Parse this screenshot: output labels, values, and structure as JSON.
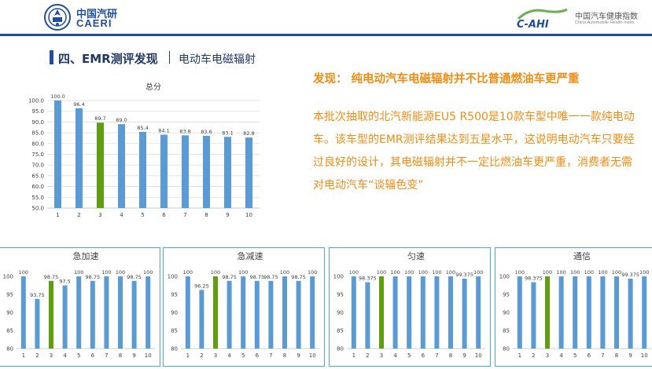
{
  "header": {
    "left_logo_cn": "中国汽研",
    "left_logo_en": "CAERI",
    "right_logo_mark": "C-AHI",
    "right_logo_cn": "中国汽车健康指数",
    "right_logo_en": "China Automobile Health Index"
  },
  "section": {
    "title": "四、EMR测评发现",
    "subtitle": "电动车电磁辐射"
  },
  "finding": {
    "title": "发现：  纯电动汽车电磁辐射并不比普通燃油车更严重",
    "body": "本批次抽取的北汽新能源EU5 R500是10款车型中唯一一款纯电动车。该车型的EMR测评结果达到五星水平，这说明电动汽车只要经过良好的设计，其电磁辐射并不一定比燃油车更严重，消费者无需对电动汽车“谈辐色变”"
  },
  "colors": {
    "bar": "#5b9bd5",
    "highlight": "#5e9e0f",
    "accent": "#f28c13",
    "brand": "#1f4e9a"
  },
  "chart_data": [
    {
      "type": "bar",
      "title": "总分",
      "categories": [
        "1",
        "2",
        "3",
        "4",
        "5",
        "6",
        "7",
        "8",
        "9",
        "10"
      ],
      "values": [
        100.0,
        96.4,
        89.7,
        89.0,
        85.4,
        84.1,
        83.8,
        83.6,
        83.1,
        82.8
      ],
      "value_labels": [
        "100.0",
        "96.4",
        "89.7",
        "89.0",
        "85.4",
        "84.1",
        "83.8",
        "83.6",
        "83.1",
        "82.8"
      ],
      "ylim": [
        50,
        100
      ],
      "yticks": [
        "50.0",
        "55.0",
        "60.0",
        "65.0",
        "70.0",
        "75.0",
        "80.0",
        "85.0",
        "90.0",
        "95.0",
        "100.0"
      ],
      "highlight_index": 2,
      "grid": true
    },
    {
      "type": "bar",
      "title": "急加速",
      "categories": [
        "1",
        "2",
        "3",
        "4",
        "5",
        "6",
        "7",
        "8",
        "9",
        "10"
      ],
      "values": [
        100,
        93.75,
        98.75,
        97.5,
        100,
        98.75,
        100,
        100,
        98.75,
        100
      ],
      "value_labels": [
        "100",
        "93.75",
        "98.75",
        "97.5",
        "100",
        "98.75",
        "100",
        "100",
        "98.75",
        "100"
      ],
      "ylim": [
        80,
        100
      ],
      "yticks": [
        "80",
        "85",
        "90",
        "95",
        "100"
      ],
      "highlight_index": 2,
      "grid": false
    },
    {
      "type": "bar",
      "title": "急减速",
      "categories": [
        "1",
        "2",
        "3",
        "4",
        "5",
        "6",
        "7",
        "8",
        "9",
        "10"
      ],
      "values": [
        100,
        96.25,
        100,
        98.75,
        100,
        98.75,
        98.75,
        100,
        98.75,
        100
      ],
      "value_labels": [
        "100",
        "96.25",
        "100",
        "98.75",
        "100",
        "98.75",
        "98.75",
        "100",
        "98.75",
        "100"
      ],
      "ylim": [
        80,
        100
      ],
      "yticks": [
        "80",
        "85",
        "90",
        "95",
        "100"
      ],
      "highlight_index": 2,
      "grid": false
    },
    {
      "type": "bar",
      "title": "匀速",
      "categories": [
        "1",
        "2",
        "3",
        "4",
        "5",
        "6",
        "7",
        "8",
        "9",
        "10"
      ],
      "values": [
        100,
        98.375,
        100,
        100,
        100,
        100,
        100,
        100,
        99.375,
        100
      ],
      "value_labels": [
        "100",
        "98.375",
        "100",
        "100",
        "100",
        "100",
        "100",
        "100",
        "99.375",
        "100"
      ],
      "ylim": [
        80,
        100
      ],
      "yticks": [
        "80",
        "85",
        "90",
        "95",
        "100"
      ],
      "highlight_index": 2,
      "grid": false
    },
    {
      "type": "bar",
      "title": "通信",
      "categories": [
        "1",
        "2",
        "3",
        "4",
        "5",
        "6",
        "7",
        "8",
        "9",
        "10"
      ],
      "values": [
        100,
        98.375,
        100,
        100,
        100,
        100,
        100,
        100,
        99.375,
        100
      ],
      "value_labels": [
        "100",
        "98.375",
        "100",
        "100",
        "100",
        "100",
        "100",
        "100",
        "99.375",
        "100"
      ],
      "ylim": [
        80,
        100
      ],
      "yticks": [
        "80",
        "85",
        "90",
        "95",
        "100"
      ],
      "highlight_index": 2,
      "grid": false
    }
  ]
}
